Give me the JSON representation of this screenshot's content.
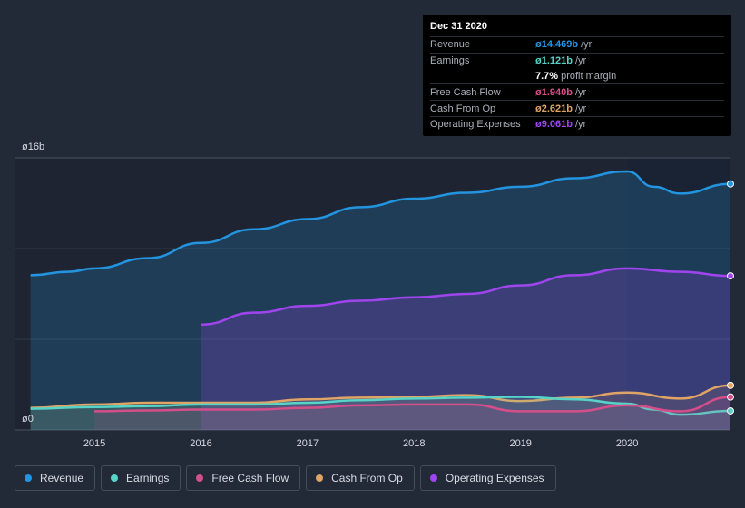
{
  "chart_data": {
    "type": "area",
    "y_axis": {
      "top_label": "ø16b",
      "bottom_label": "ø0",
      "ylim": [
        0,
        16
      ]
    },
    "x_axis": {
      "ticks": [
        "2015",
        "2016",
        "2017",
        "2018",
        "2019",
        "2020"
      ],
      "xlim": [
        2014.25,
        2020.97
      ]
    },
    "series": [
      {
        "name": "Revenue",
        "color": "#2394df",
        "x": [
          2014.4,
          2014.75,
          2015.0,
          2015.5,
          2016.0,
          2016.5,
          2017.0,
          2017.5,
          2018.0,
          2018.5,
          2019.0,
          2019.5,
          2020.0,
          2020.25,
          2020.5,
          2020.97
        ],
        "values": [
          9.1,
          9.3,
          9.5,
          10.1,
          11.0,
          11.8,
          12.4,
          13.1,
          13.6,
          13.95,
          14.3,
          14.8,
          15.2,
          14.3,
          13.9,
          14.469
        ]
      },
      {
        "name": "Operating Expenses",
        "color": "#a045ee",
        "x": [
          2016.0,
          2016.5,
          2017.0,
          2017.5,
          2018.0,
          2018.5,
          2019.0,
          2019.5,
          2020.0,
          2020.5,
          2020.97
        ],
        "values": [
          6.2,
          6.9,
          7.3,
          7.6,
          7.8,
          8.0,
          8.5,
          9.1,
          9.5,
          9.3,
          9.061
        ]
      },
      {
        "name": "Cash From Op",
        "color": "#e0a464",
        "x": [
          2014.4,
          2015.0,
          2015.5,
          2016.0,
          2016.5,
          2017.0,
          2017.5,
          2018.0,
          2018.5,
          2019.0,
          2019.5,
          2020.0,
          2020.5,
          2020.97
        ],
        "values": [
          1.3,
          1.5,
          1.6,
          1.6,
          1.6,
          1.8,
          1.9,
          1.95,
          2.05,
          1.7,
          1.9,
          2.2,
          1.85,
          2.621
        ]
      },
      {
        "name": "Earnings",
        "color": "#56d4c8",
        "x": [
          2014.4,
          2015.0,
          2015.5,
          2016.0,
          2016.5,
          2017.0,
          2017.5,
          2018.0,
          2018.5,
          2019.0,
          2019.5,
          2020.0,
          2020.25,
          2020.5,
          2020.97
        ],
        "values": [
          1.25,
          1.35,
          1.4,
          1.5,
          1.5,
          1.6,
          1.75,
          1.85,
          1.9,
          1.95,
          1.8,
          1.55,
          1.2,
          0.9,
          1.121
        ]
      },
      {
        "name": "Free Cash Flow",
        "color": "#d54e89",
        "x": [
          2015.0,
          2015.5,
          2016.0,
          2016.5,
          2017.0,
          2017.5,
          2018.0,
          2018.5,
          2019.0,
          2019.5,
          2020.0,
          2020.5,
          2020.97
        ],
        "values": [
          1.1,
          1.15,
          1.2,
          1.2,
          1.3,
          1.45,
          1.5,
          1.5,
          1.1,
          1.1,
          1.45,
          1.1,
          1.94
        ]
      }
    ],
    "highlight_from": 2020.0,
    "grid": true,
    "legend": "bottom"
  },
  "tooltip": {
    "date": "Dec 31 2020",
    "rows": [
      {
        "label": "Revenue",
        "value": "ø14.469b",
        "unit": "/yr",
        "color": "#2394df"
      },
      {
        "label": "Earnings",
        "value": "ø1.121b",
        "unit": "/yr",
        "color": "#56d4c8"
      },
      {
        "label": "",
        "value": "7.7%",
        "unit": "profit margin",
        "color": "#ffffff"
      },
      {
        "label": "Free Cash Flow",
        "value": "ø1.940b",
        "unit": "/yr",
        "color": "#d54e89"
      },
      {
        "label": "Cash From Op",
        "value": "ø2.621b",
        "unit": "/yr",
        "color": "#e0a464"
      },
      {
        "label": "Operating Expenses",
        "value": "ø9.061b",
        "unit": "/yr",
        "color": "#a045ee"
      }
    ]
  },
  "legend": [
    {
      "label": "Revenue",
      "color": "#2394df"
    },
    {
      "label": "Earnings",
      "color": "#56d4c8"
    },
    {
      "label": "Free Cash Flow",
      "color": "#d54e89"
    },
    {
      "label": "Cash From Op",
      "color": "#e0a464"
    },
    {
      "label": "Operating Expenses",
      "color": "#a045ee"
    }
  ]
}
